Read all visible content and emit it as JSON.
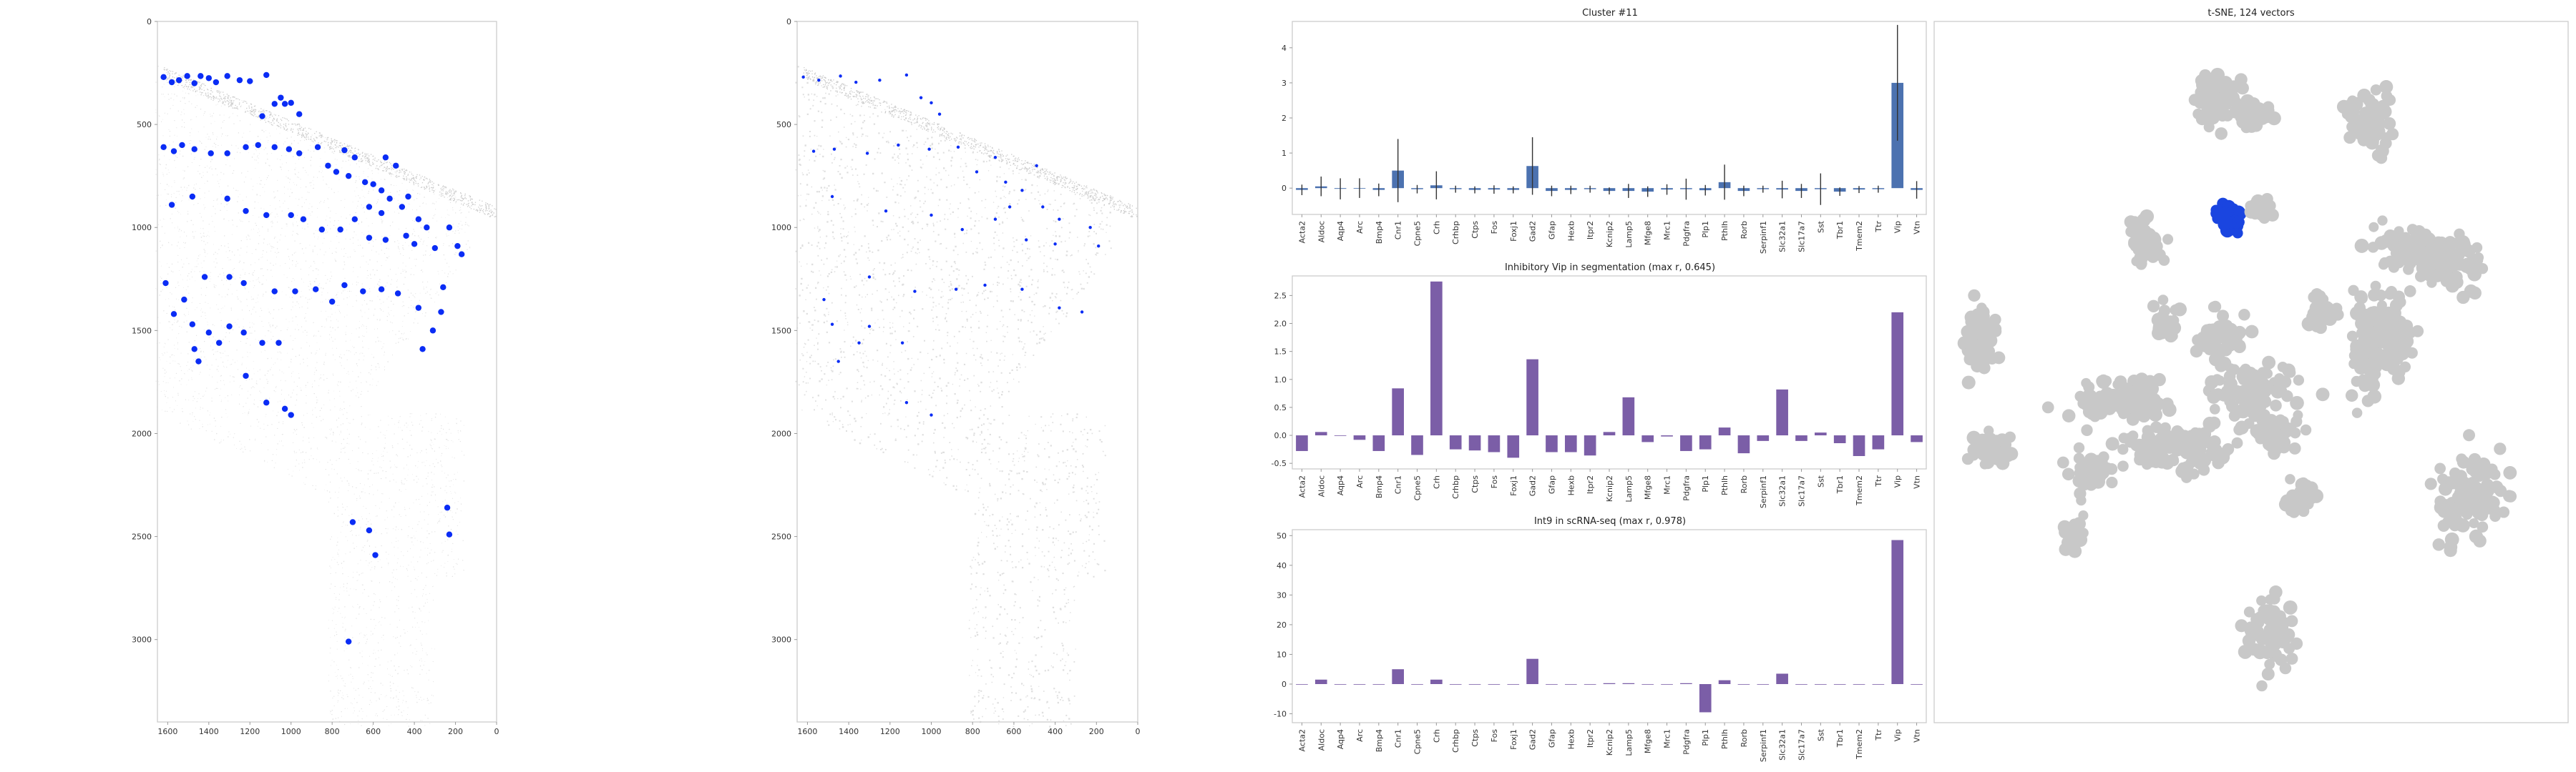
{
  "colors": {
    "spot": "#0a2cf5",
    "bg_cell": "#bdbdbd",
    "cluster_bar": "#4c72b0",
    "purple_bar": "#7b5ea7",
    "tsne_grey": "#c8c8c8",
    "tsne_highlight": "#1a45e0"
  },
  "genes": [
    "Acta2",
    "Aldoc",
    "Aqp4",
    "Arc",
    "Bmp4",
    "Cnr1",
    "Cpne5",
    "Crh",
    "Crhbp",
    "Ctps",
    "Fos",
    "Foxj1",
    "Gad2",
    "Gfap",
    "Hexb",
    "Itpr2",
    "Kcnip2",
    "Lamp5",
    "Mfge8",
    "Mrc1",
    "Pdgfra",
    "Plp1",
    "Pthlh",
    "Rorb",
    "Serpinf1",
    "Slc32a1",
    "Slc17a7",
    "Sst",
    "Tbr1",
    "Tmem2",
    "Ttr",
    "Vip",
    "Vtn"
  ],
  "chart_data": [
    {
      "type": "scatter",
      "title": "",
      "xlim": [
        1650,
        0
      ],
      "ylim": [
        3400,
        0
      ],
      "xticks": [
        1600,
        1400,
        1200,
        1000,
        800,
        600,
        400,
        200,
        0
      ],
      "yticks": [
        0,
        500,
        1000,
        1500,
        2000,
        2500,
        3000
      ],
      "highlighted_points": [
        [
          1620,
          270
        ],
        [
          1580,
          295
        ],
        [
          1545,
          285
        ],
        [
          1505,
          265
        ],
        [
          1470,
          300
        ],
        [
          1440,
          265
        ],
        [
          1400,
          275
        ],
        [
          1365,
          295
        ],
        [
          1310,
          265
        ],
        [
          1250,
          285
        ],
        [
          1200,
          290
        ],
        [
          1120,
          260
        ],
        [
          1050,
          370
        ],
        [
          1030,
          400
        ],
        [
          1000,
          395
        ],
        [
          1080,
          400
        ],
        [
          960,
          450
        ],
        [
          1140,
          460
        ],
        [
          1620,
          610
        ],
        [
          1570,
          630
        ],
        [
          1530,
          600
        ],
        [
          1470,
          620
        ],
        [
          1390,
          640
        ],
        [
          1310,
          640
        ],
        [
          1220,
          610
        ],
        [
          1160,
          600
        ],
        [
          1080,
          610
        ],
        [
          1010,
          620
        ],
        [
          960,
          640
        ],
        [
          870,
          610
        ],
        [
          740,
          625
        ],
        [
          690,
          660
        ],
        [
          540,
          660
        ],
        [
          490,
          700
        ],
        [
          820,
          700
        ],
        [
          780,
          730
        ],
        [
          720,
          750
        ],
        [
          640,
          780
        ],
        [
          600,
          790
        ],
        [
          560,
          820
        ],
        [
          520,
          860
        ],
        [
          460,
          900
        ],
        [
          430,
          850
        ],
        [
          620,
          900
        ],
        [
          560,
          930
        ],
        [
          380,
          960
        ],
        [
          340,
          1000
        ],
        [
          230,
          1000
        ],
        [
          1580,
          890
        ],
        [
          1480,
          850
        ],
        [
          1310,
          860
        ],
        [
          1220,
          920
        ],
        [
          1120,
          940
        ],
        [
          1000,
          940
        ],
        [
          940,
          960
        ],
        [
          850,
          1010
        ],
        [
          760,
          1010
        ],
        [
          690,
          960
        ],
        [
          620,
          1050
        ],
        [
          540,
          1060
        ],
        [
          440,
          1040
        ],
        [
          400,
          1080
        ],
        [
          300,
          1100
        ],
        [
          190,
          1090
        ],
        [
          170,
          1130
        ],
        [
          1610,
          1270
        ],
        [
          1520,
          1350
        ],
        [
          1420,
          1240
        ],
        [
          1300,
          1240
        ],
        [
          1230,
          1270
        ],
        [
          1080,
          1310
        ],
        [
          980,
          1310
        ],
        [
          880,
          1300
        ],
        [
          800,
          1360
        ],
        [
          740,
          1280
        ],
        [
          650,
          1310
        ],
        [
          560,
          1300
        ],
        [
          480,
          1320
        ],
        [
          380,
          1390
        ],
        [
          260,
          1290
        ],
        [
          270,
          1410
        ],
        [
          1570,
          1420
        ],
        [
          1480,
          1470
        ],
        [
          1400,
          1510
        ],
        [
          1300,
          1480
        ],
        [
          1230,
          1510
        ],
        [
          1140,
          1560
        ],
        [
          1060,
          1560
        ],
        [
          1350,
          1560
        ],
        [
          1470,
          1590
        ],
        [
          1450,
          1650
        ],
        [
          1220,
          1720
        ],
        [
          1120,
          1850
        ],
        [
          1030,
          1880
        ],
        [
          1000,
          1910
        ],
        [
          360,
          1590
        ],
        [
          310,
          1500
        ],
        [
          240,
          2360
        ],
        [
          230,
          2490
        ],
        [
          700,
          2430
        ],
        [
          620,
          2470
        ],
        [
          590,
          2590
        ],
        [
          720,
          3010
        ]
      ]
    },
    {
      "type": "scatter",
      "title": "",
      "xlim": [
        1650,
        0
      ],
      "ylim": [
        3400,
        0
      ],
      "xticks": [
        1600,
        1400,
        1200,
        1000,
        800,
        600,
        400,
        200,
        0
      ],
      "yticks": [
        0,
        500,
        1000,
        1500,
        2000,
        2500,
        3000
      ],
      "highlighted_points": [
        [
          1620,
          270
        ],
        [
          1545,
          285
        ],
        [
          1440,
          265
        ],
        [
          1365,
          295
        ],
        [
          1250,
          285
        ],
        [
          1120,
          260
        ],
        [
          1050,
          370
        ],
        [
          1000,
          395
        ],
        [
          960,
          450
        ],
        [
          1570,
          630
        ],
        [
          1470,
          620
        ],
        [
          1310,
          640
        ],
        [
          1160,
          600
        ],
        [
          1010,
          620
        ],
        [
          870,
          610
        ],
        [
          690,
          660
        ],
        [
          490,
          700
        ],
        [
          780,
          730
        ],
        [
          640,
          780
        ],
        [
          560,
          820
        ],
        [
          460,
          900
        ],
        [
          620,
          900
        ],
        [
          380,
          960
        ],
        [
          230,
          1000
        ],
        [
          1480,
          850
        ],
        [
          1220,
          920
        ],
        [
          1000,
          940
        ],
        [
          850,
          1010
        ],
        [
          690,
          960
        ],
        [
          540,
          1060
        ],
        [
          400,
          1080
        ],
        [
          190,
          1090
        ],
        [
          1520,
          1350
        ],
        [
          1300,
          1240
        ],
        [
          1080,
          1310
        ],
        [
          880,
          1300
        ],
        [
          740,
          1280
        ],
        [
          560,
          1300
        ],
        [
          380,
          1390
        ],
        [
          270,
          1410
        ],
        [
          1480,
          1470
        ],
        [
          1300,
          1480
        ],
        [
          1140,
          1560
        ],
        [
          1350,
          1560
        ],
        [
          1450,
          1650
        ],
        [
          1120,
          1850
        ],
        [
          1000,
          1910
        ]
      ]
    },
    {
      "type": "bar",
      "title": "Cluster #11",
      "ylim": [
        -0.75,
        4.75
      ],
      "yticks": [
        0,
        1,
        2,
        3,
        4
      ],
      "values": [
        -0.05,
        0.05,
        -0.02,
        0.0,
        -0.05,
        0.5,
        -0.03,
        0.08,
        -0.03,
        -0.05,
        -0.04,
        -0.05,
        0.63,
        -0.08,
        -0.05,
        -0.03,
        -0.08,
        -0.08,
        -0.1,
        -0.04,
        -0.03,
        -0.06,
        0.17,
        -0.08,
        -0.03,
        -0.04,
        -0.08,
        -0.03,
        -0.1,
        -0.04,
        -0.03,
        3.0,
        -0.05
      ],
      "errors": [
        0.15,
        0.28,
        0.3,
        0.28,
        0.18,
        0.9,
        0.12,
        0.4,
        0.1,
        0.1,
        0.12,
        0.1,
        0.82,
        0.15,
        0.12,
        0.1,
        0.1,
        0.2,
        0.15,
        0.15,
        0.3,
        0.15,
        0.5,
        0.15,
        0.1,
        0.25,
        0.2,
        0.45,
        0.12,
        0.1,
        0.1,
        1.65,
        0.25
      ]
    },
    {
      "type": "bar",
      "title": "Inhibitory Vip in segmentation (max r, 0.645)",
      "ylim": [
        -0.6,
        2.85
      ],
      "yticks": [
        -0.5,
        0.0,
        0.5,
        1.0,
        1.5,
        2.0,
        2.5
      ],
      "values": [
        -0.28,
        0.06,
        0.0,
        -0.08,
        -0.28,
        0.84,
        -0.35,
        2.75,
        -0.25,
        -0.27,
        -0.3,
        -0.4,
        1.36,
        -0.3,
        -0.3,
        -0.36,
        0.06,
        0.68,
        -0.12,
        -0.02,
        -0.28,
        -0.25,
        0.14,
        -0.32,
        -0.1,
        0.82,
        -0.1,
        0.05,
        -0.14,
        -0.37,
        -0.25,
        2.2,
        -0.12
      ]
    },
    {
      "type": "bar",
      "title": "Int9 in scRNA-seq (max r, 0.978)",
      "ylim": [
        -13,
        52
      ],
      "yticks": [
        -10,
        0,
        10,
        20,
        30,
        40,
        50
      ],
      "values": [
        0,
        1.5,
        0,
        0,
        0,
        5,
        0,
        1.5,
        0,
        0,
        0,
        0,
        8.5,
        0,
        0,
        0,
        0.3,
        0.3,
        0,
        0,
        0.3,
        -9.5,
        1.3,
        0,
        0,
        3.5,
        0,
        0,
        0,
        0,
        0,
        48.5,
        0
      ]
    },
    {
      "type": "scatter",
      "title": "t-SNE, 124 vectors",
      "clusters": [
        {
          "cx": 0.448,
          "cy": 0.11,
          "rx": 0.038,
          "ry": 0.038,
          "n": 60,
          "highlight": false
        },
        {
          "cx": 0.5,
          "cy": 0.13,
          "rx": 0.03,
          "ry": 0.022,
          "n": 45,
          "highlight": false
        },
        {
          "cx": 0.686,
          "cy": 0.14,
          "rx": 0.038,
          "ry": 0.048,
          "n": 70,
          "highlight": false
        },
        {
          "cx": 0.465,
          "cy": 0.28,
          "rx": 0.022,
          "ry": 0.022,
          "n": 45,
          "highlight": true
        },
        {
          "cx": 0.515,
          "cy": 0.265,
          "rx": 0.018,
          "ry": 0.016,
          "n": 25,
          "highlight": false
        },
        {
          "cx": 0.33,
          "cy": 0.315,
          "rx": 0.03,
          "ry": 0.035,
          "n": 45,
          "highlight": false
        },
        {
          "cx": 0.07,
          "cy": 0.45,
          "rx": 0.035,
          "ry": 0.055,
          "n": 65,
          "highlight": false
        },
        {
          "cx": 0.365,
          "cy": 0.43,
          "rx": 0.026,
          "ry": 0.022,
          "n": 30,
          "highlight": false
        },
        {
          "cx": 0.45,
          "cy": 0.45,
          "rx": 0.04,
          "ry": 0.04,
          "n": 55,
          "highlight": false
        },
        {
          "cx": 0.61,
          "cy": 0.42,
          "rx": 0.022,
          "ry": 0.035,
          "n": 35,
          "highlight": false
        },
        {
          "cx": 0.7,
          "cy": 0.45,
          "rx": 0.065,
          "ry": 0.085,
          "n": 130,
          "highlight": false
        },
        {
          "cx": 0.8,
          "cy": 0.34,
          "rx": 0.075,
          "ry": 0.04,
          "n": 110,
          "highlight": false
        },
        {
          "cx": 0.75,
          "cy": 0.32,
          "rx": 0.06,
          "ry": 0.03,
          "n": 60,
          "highlight": false
        },
        {
          "cx": 0.3,
          "cy": 0.54,
          "rx": 0.09,
          "ry": 0.03,
          "n": 110,
          "highlight": false
        },
        {
          "cx": 0.5,
          "cy": 0.53,
          "rx": 0.07,
          "ry": 0.05,
          "n": 100,
          "highlight": false
        },
        {
          "cx": 0.38,
          "cy": 0.61,
          "rx": 0.1,
          "ry": 0.035,
          "n": 110,
          "highlight": false
        },
        {
          "cx": 0.25,
          "cy": 0.64,
          "rx": 0.04,
          "ry": 0.03,
          "n": 40,
          "highlight": false
        },
        {
          "cx": 0.09,
          "cy": 0.61,
          "rx": 0.04,
          "ry": 0.03,
          "n": 40,
          "highlight": false
        },
        {
          "cx": 0.54,
          "cy": 0.59,
          "rx": 0.04,
          "ry": 0.028,
          "n": 40,
          "highlight": false
        },
        {
          "cx": 0.58,
          "cy": 0.68,
          "rx": 0.03,
          "ry": 0.03,
          "n": 35,
          "highlight": false
        },
        {
          "cx": 0.842,
          "cy": 0.68,
          "rx": 0.055,
          "ry": 0.07,
          "n": 110,
          "highlight": false
        },
        {
          "cx": 0.22,
          "cy": 0.73,
          "rx": 0.022,
          "ry": 0.025,
          "n": 30,
          "highlight": false
        },
        {
          "cx": 0.53,
          "cy": 0.87,
          "rx": 0.04,
          "ry": 0.06,
          "n": 70,
          "highlight": false
        }
      ]
    }
  ]
}
